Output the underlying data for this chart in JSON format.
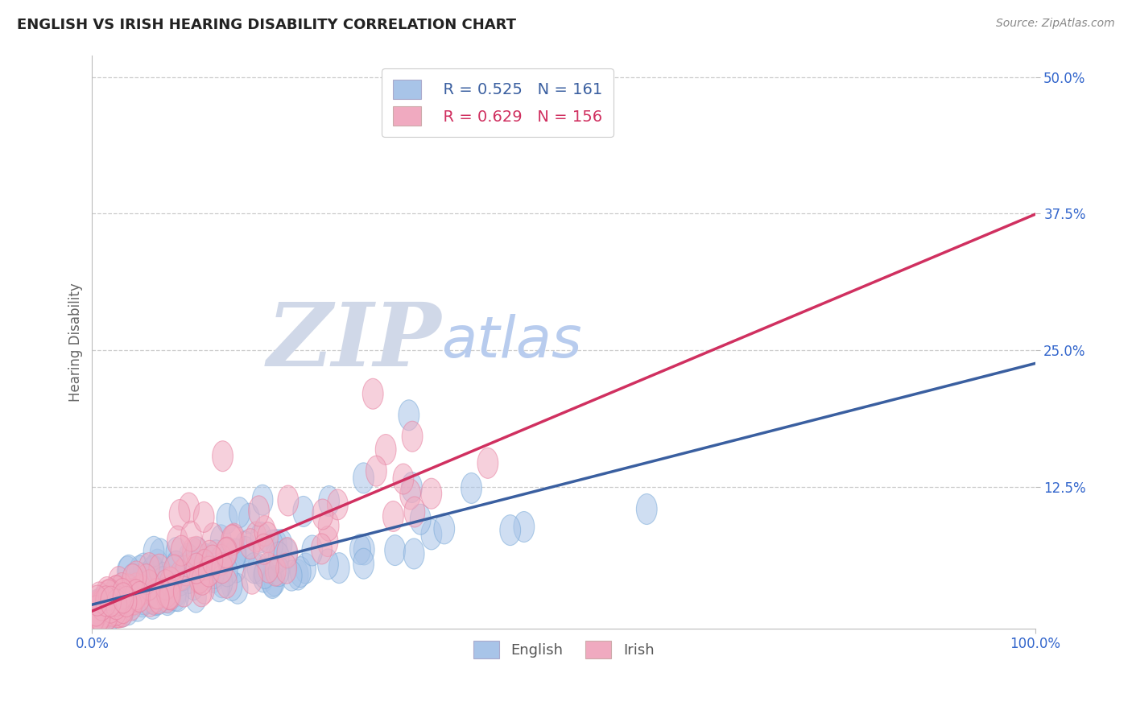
{
  "title": "ENGLISH VS IRISH HEARING DISABILITY CORRELATION CHART",
  "source": "Source: ZipAtlas.com",
  "ylabel": "Hearing Disability",
  "xlim": [
    0.0,
    1.0
  ],
  "ylim": [
    -0.005,
    0.52
  ],
  "yticks": [
    0.125,
    0.25,
    0.375,
    0.5
  ],
  "ytick_labels": [
    "12.5%",
    "25.0%",
    "37.5%",
    "50.0%"
  ],
  "xticks": [
    0.0,
    1.0
  ],
  "xtick_labels": [
    "0.0%",
    "100.0%"
  ],
  "english_R": 0.525,
  "english_N": 161,
  "irish_R": 0.629,
  "irish_N": 156,
  "english_color": "#a8c4e8",
  "irish_color": "#f0aac0",
  "english_edge_color": "#7aaad8",
  "irish_edge_color": "#e880a0",
  "english_line_color": "#3a5fa0",
  "irish_line_color": "#d03060",
  "legend_color_english": "#a8c4e8",
  "legend_color_irish": "#f0aac0",
  "watermark_zip_color": "#d0d8e8",
  "watermark_atlas_color": "#b8ccee",
  "background_color": "#ffffff",
  "grid_color": "#cccccc",
  "tick_color": "#3366cc",
  "title_color": "#222222",
  "source_color": "#888888",
  "ylabel_color": "#666666"
}
